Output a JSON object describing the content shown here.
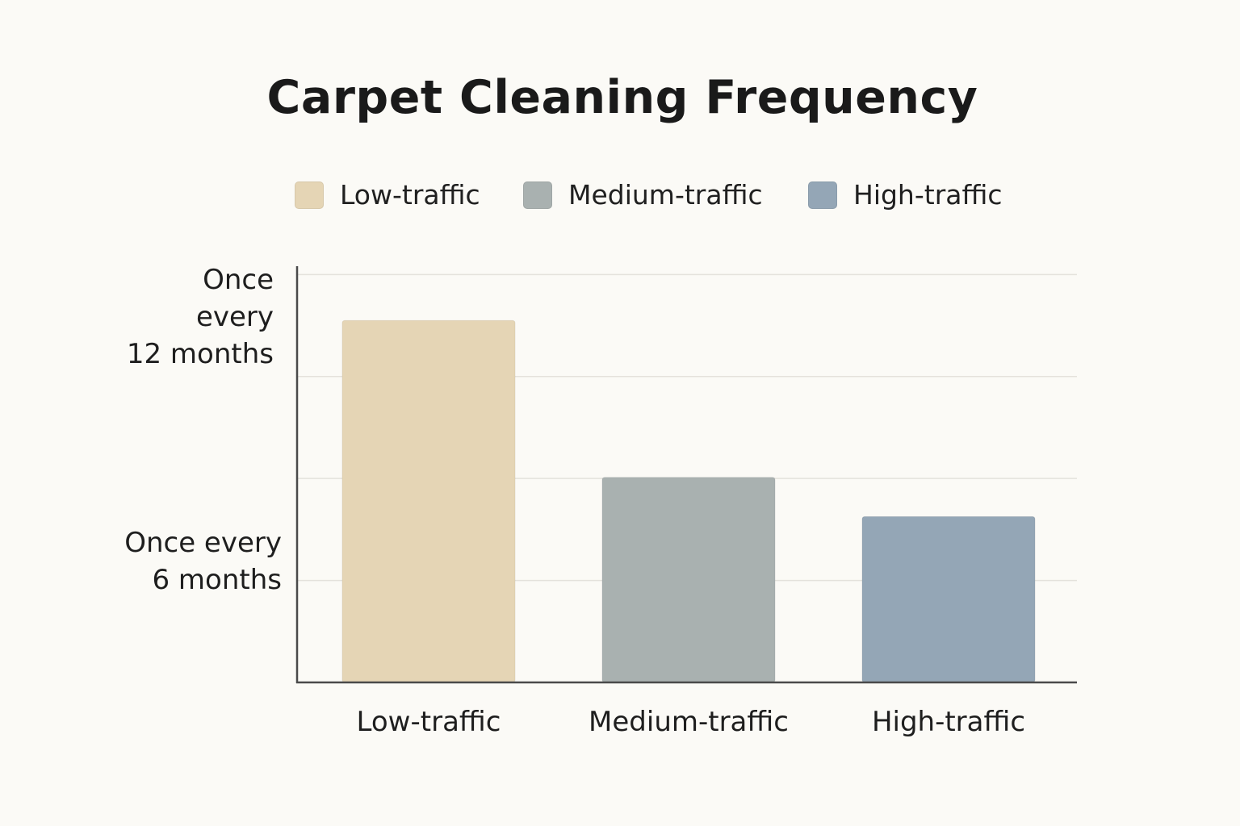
{
  "chart_data": {
    "type": "bar",
    "title": "Carpet Cleaning Frequency",
    "xlabel": "",
    "ylabel": "",
    "categories": [
      "Low-traffic",
      "Medium-traffic",
      "High-traffic"
    ],
    "values": [
      12,
      6.8,
      5.5
    ],
    "colors": [
      "#e5d5b5",
      "#a9b1b0",
      "#94a6b6"
    ],
    "legend": {
      "position": "top",
      "entries": [
        {
          "label": "Low-traffic",
          "color": "#e5d5b5"
        },
        {
          "label": "Medium-traffic",
          "color": "#a9b1b0"
        },
        {
          "label": "High-traffic",
          "color": "#94a6b6"
        }
      ]
    },
    "y_tick_labels": [
      {
        "value": 12,
        "label": "Once\nevery\n12 months"
      },
      {
        "value": 6,
        "label": "Once every\n6 months"
      }
    ],
    "ylim": [
      0,
      13.8
    ],
    "grid": true,
    "gridline_color": "#e4e2dc",
    "axis_color": "#4a4a4a"
  }
}
